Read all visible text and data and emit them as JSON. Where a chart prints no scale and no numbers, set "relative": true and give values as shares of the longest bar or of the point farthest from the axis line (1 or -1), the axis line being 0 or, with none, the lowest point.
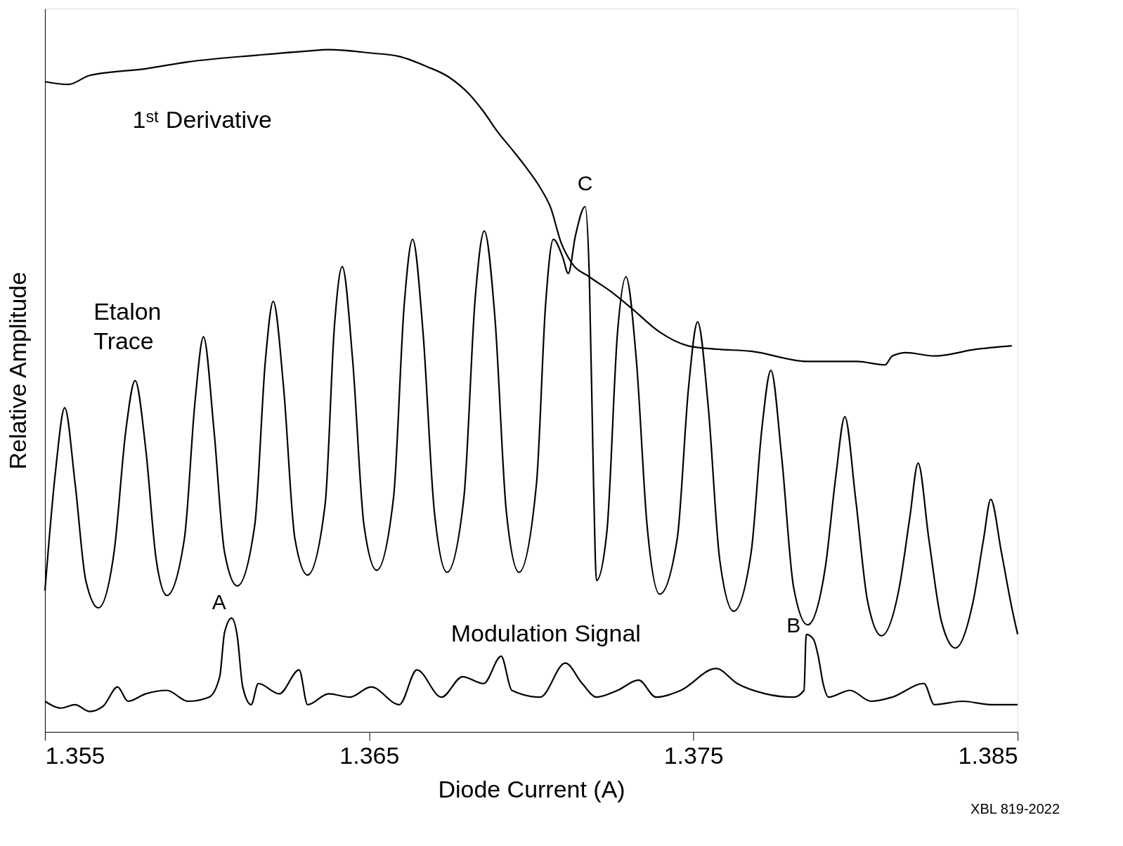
{
  "chart_data": {
    "type": "line",
    "relative": true,
    "xlabel": "Diode Current (A)",
    "ylabel": "Relative Amplitude",
    "xlim": [
      1.355,
      1.385
    ],
    "xticks": [
      1.355,
      1.365,
      1.375,
      1.385
    ],
    "grid": false,
    "marker": "none",
    "line_style": "solid",
    "series": [
      {
        "name": "1ˢᵗ Derivative",
        "color": "#000000",
        "x": [
          1.355,
          1.35572,
          1.35637,
          1.35811,
          1.35941,
          1.36158,
          1.3631,
          1.36375,
          1.36506,
          1.36593,
          1.36679,
          1.36745,
          1.3681,
          1.36853,
          1.36897,
          1.3694,
          1.36983,
          1.37027,
          1.3706,
          1.37092,
          1.37125,
          1.37179,
          1.37244,
          1.37309,
          1.37396,
          1.37483,
          1.3757,
          1.37678,
          1.37852,
          1.38004,
          1.38091,
          1.38113,
          1.38156,
          1.38243,
          1.38374,
          1.38482
        ],
        "values": [
          0.953,
          0.949,
          0.962,
          0.972,
          0.982,
          0.992,
          0.998,
          1.0,
          0.995,
          0.99,
          0.975,
          0.96,
          0.934,
          0.909,
          0.879,
          0.854,
          0.828,
          0.798,
          0.768,
          0.717,
          0.687,
          0.667,
          0.646,
          0.621,
          0.586,
          0.566,
          0.561,
          0.558,
          0.543,
          0.543,
          0.538,
          0.551,
          0.556,
          0.551,
          0.561,
          0.566
        ]
      },
      {
        "name": "Etalon Trace",
        "color": "#000000",
        "x": [
          1.355,
          1.35533,
          1.35561,
          1.35593,
          1.35626,
          1.35665,
          1.35713,
          1.3575,
          1.35778,
          1.35811,
          1.35843,
          1.35876,
          1.3593,
          1.35963,
          1.35989,
          1.36021,
          1.36054,
          1.36093,
          1.36147,
          1.3618,
          1.36204,
          1.36236,
          1.36271,
          1.3631,
          1.36364,
          1.36393,
          1.36417,
          1.36449,
          1.36484,
          1.36523,
          1.36575,
          1.36608,
          1.36634,
          1.36666,
          1.36701,
          1.3674,
          1.36792,
          1.36827,
          1.36855,
          1.36888,
          1.36923,
          1.36962,
          1.37016,
          1.37044,
          1.37068,
          1.37096,
          1.37114,
          1.37136,
          1.37166,
          1.37179,
          1.37192,
          1.37201,
          1.37233,
          1.37266,
          1.37292,
          1.37324,
          1.37357,
          1.37396,
          1.3745,
          1.37485,
          1.37513,
          1.37546,
          1.37581,
          1.37624,
          1.37678,
          1.37711,
          1.37739,
          1.37772,
          1.37809,
          1.37852,
          1.37907,
          1.37939,
          1.37967,
          1.38,
          1.38037,
          1.3808,
          1.38135,
          1.38167,
          1.38193,
          1.38226,
          1.38265,
          1.38308,
          1.38363,
          1.38395,
          1.38417,
          1.3845,
          1.38482,
          1.385
        ],
        "values": [
          0.207,
          0.384,
          0.475,
          0.364,
          0.222,
          0.182,
          0.263,
          0.444,
          0.515,
          0.414,
          0.253,
          0.2,
          0.283,
          0.485,
          0.579,
          0.444,
          0.263,
          0.214,
          0.303,
          0.545,
          0.631,
          0.505,
          0.283,
          0.23,
          0.333,
          0.596,
          0.682,
          0.545,
          0.303,
          0.237,
          0.343,
          0.626,
          0.722,
          0.586,
          0.323,
          0.234,
          0.343,
          0.636,
          0.734,
          0.606,
          0.323,
          0.234,
          0.364,
          0.626,
          0.722,
          0.697,
          0.672,
          0.727,
          0.77,
          0.667,
          0.364,
          0.222,
          0.293,
          0.586,
          0.667,
          0.545,
          0.303,
          0.202,
          0.283,
          0.505,
          0.601,
          0.475,
          0.253,
          0.177,
          0.263,
          0.444,
          0.53,
          0.404,
          0.212,
          0.157,
          0.242,
          0.374,
          0.462,
          0.343,
          0.192,
          0.141,
          0.212,
          0.313,
          0.394,
          0.283,
          0.162,
          0.123,
          0.192,
          0.283,
          0.341,
          0.263,
          0.182,
          0.143
        ]
      },
      {
        "name": "Modulation Signal",
        "color": "#000000",
        "x": [
          1.355,
          1.3555,
          1.35593,
          1.35637,
          1.3568,
          1.35724,
          1.35756,
          1.35811,
          1.35876,
          1.35941,
          1.36006,
          1.36039,
          1.36054,
          1.36076,
          1.36093,
          1.3611,
          1.36136,
          1.36158,
          1.36223,
          1.36284,
          1.3631,
          1.36375,
          1.3644,
          1.36506,
          1.36593,
          1.36647,
          1.36723,
          1.36788,
          1.36853,
          1.36907,
          1.3694,
          1.37027,
          1.37105,
          1.37157,
          1.37201,
          1.37266,
          1.37331,
          1.37385,
          1.37461,
          1.3757,
          1.37635,
          1.37722,
          1.37809,
          1.37841,
          1.37848,
          1.3787,
          1.37885,
          1.379,
          1.37917,
          1.37983,
          1.38048,
          1.38113,
          1.38211,
          1.38243,
          1.3833,
          1.38417,
          1.385
        ],
        "values": [
          0.045,
          0.035,
          0.04,
          0.03,
          0.038,
          0.066,
          0.045,
          0.056,
          0.061,
          0.045,
          0.051,
          0.081,
          0.146,
          0.167,
          0.141,
          0.066,
          0.04,
          0.071,
          0.056,
          0.091,
          0.04,
          0.056,
          0.051,
          0.066,
          0.04,
          0.091,
          0.051,
          0.081,
          0.071,
          0.111,
          0.061,
          0.051,
          0.101,
          0.071,
          0.051,
          0.061,
          0.076,
          0.051,
          0.061,
          0.093,
          0.071,
          0.056,
          0.051,
          0.061,
          0.143,
          0.136,
          0.111,
          0.071,
          0.051,
          0.061,
          0.045,
          0.051,
          0.071,
          0.04,
          0.045,
          0.04,
          0.04
        ]
      }
    ],
    "annotations": [
      {
        "text": "A",
        "x": 1.36076,
        "y": 0.167
      },
      {
        "text": "B",
        "x": 1.37848,
        "y": 0.143
      },
      {
        "text": "C",
        "x": 1.37166,
        "y": 0.77
      },
      "XBL 819-2022"
    ]
  }
}
